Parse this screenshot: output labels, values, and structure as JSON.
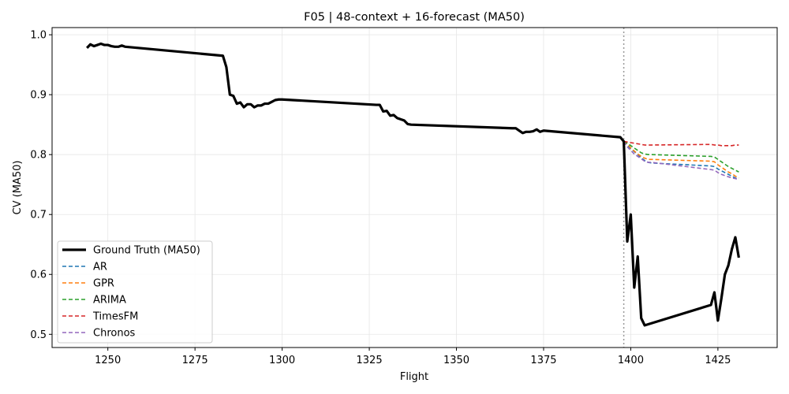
{
  "chart_data": {
    "type": "line",
    "title": "F05 | 48-context + 16-forecast (MA50)",
    "xlabel": "Flight",
    "ylabel": "CV (MA50)",
    "xlim": [
      1234,
      1442
    ],
    "ylim": [
      0.478,
      1.012
    ],
    "xticks": [
      1250,
      1275,
      1300,
      1325,
      1350,
      1375,
      1400,
      1425
    ],
    "yticks": [
      0.5,
      0.6,
      0.7,
      0.8,
      0.9,
      1.0
    ],
    "grid": true,
    "legend_position": "lower-left",
    "forecast_start_marker": 1398,
    "series": [
      {
        "name": "Ground Truth (MA50)",
        "color": "#000000",
        "style": "solid",
        "x": [
          1244,
          1245,
          1246,
          1247,
          1248,
          1249,
          1250,
          1251,
          1252,
          1253,
          1254,
          1255,
          1283,
          1284,
          1285,
          1286,
          1287,
          1288,
          1289,
          1290,
          1291,
          1292,
          1293,
          1294,
          1295,
          1296,
          1297,
          1298,
          1299,
          1300,
          1327,
          1328,
          1329,
          1330,
          1331,
          1332,
          1333,
          1334,
          1335,
          1336,
          1337,
          1366,
          1367,
          1368,
          1369,
          1370,
          1371,
          1372,
          1373,
          1374,
          1375,
          1397,
          1398,
          1399,
          1400,
          1401,
          1402,
          1403,
          1404,
          1423,
          1424,
          1425,
          1426,
          1427,
          1428,
          1429,
          1430,
          1431
        ],
        "values": [
          0.978,
          0.984,
          0.981,
          0.983,
          0.985,
          0.983,
          0.983,
          0.981,
          0.98,
          0.98,
          0.982,
          0.98,
          0.965,
          0.946,
          0.9,
          0.898,
          0.885,
          0.887,
          0.879,
          0.884,
          0.884,
          0.879,
          0.882,
          0.882,
          0.885,
          0.885,
          0.888,
          0.891,
          0.892,
          0.892,
          0.883,
          0.883,
          0.872,
          0.873,
          0.865,
          0.866,
          0.861,
          0.859,
          0.857,
          0.851,
          0.85,
          0.844,
          0.844,
          0.84,
          0.836,
          0.838,
          0.838,
          0.839,
          0.842,
          0.838,
          0.84,
          0.829,
          0.822,
          0.655,
          0.7,
          0.578,
          0.63,
          0.527,
          0.515,
          0.549,
          0.57,
          0.523,
          0.56,
          0.6,
          0.615,
          0.642,
          0.662,
          0.628
        ]
      },
      {
        "name": "AR",
        "color": "#1f77b4",
        "style": "dashed",
        "x": [
          1398,
          1399,
          1400,
          1401,
          1402,
          1403,
          1404,
          1405,
          1406,
          1423,
          1424,
          1425,
          1426,
          1427,
          1428,
          1429,
          1430,
          1431
        ],
        "values": [
          0.822,
          0.816,
          0.81,
          0.805,
          0.8,
          0.795,
          0.79,
          0.787,
          0.786,
          0.781,
          0.78,
          0.776,
          0.773,
          0.77,
          0.767,
          0.764,
          0.761,
          0.759
        ]
      },
      {
        "name": "GPR",
        "color": "#ff7f0e",
        "style": "dashed",
        "x": [
          1398,
          1399,
          1400,
          1401,
          1402,
          1403,
          1404,
          1405,
          1406,
          1423,
          1424,
          1425,
          1426,
          1427,
          1428,
          1429,
          1430,
          1431
        ],
        "values": [
          0.822,
          0.818,
          0.811,
          0.806,
          0.801,
          0.797,
          0.794,
          0.792,
          0.792,
          0.789,
          0.788,
          0.783,
          0.779,
          0.775,
          0.771,
          0.768,
          0.764,
          0.761
        ]
      },
      {
        "name": "ARIMA",
        "color": "#2ca02c",
        "style": "dashed",
        "x": [
          1398,
          1399,
          1400,
          1401,
          1402,
          1403,
          1404,
          1405,
          1406,
          1423,
          1424,
          1425,
          1426,
          1427,
          1428,
          1429,
          1430,
          1431
        ],
        "values": [
          0.822,
          0.819,
          0.815,
          0.811,
          0.807,
          0.803,
          0.801,
          0.8,
          0.8,
          0.797,
          0.796,
          0.792,
          0.788,
          0.784,
          0.78,
          0.777,
          0.774,
          0.771
        ]
      },
      {
        "name": "TimesFM",
        "color": "#d62728",
        "style": "dashed",
        "x": [
          1398,
          1399,
          1400,
          1401,
          1402,
          1403,
          1404,
          1405,
          1406,
          1423,
          1424,
          1425,
          1426,
          1427,
          1428,
          1429,
          1430,
          1431
        ],
        "values": [
          0.822,
          0.821,
          0.82,
          0.819,
          0.818,
          0.817,
          0.816,
          0.816,
          0.816,
          0.817,
          0.816,
          0.816,
          0.815,
          0.815,
          0.815,
          0.815,
          0.816,
          0.816
        ]
      },
      {
        "name": "Chronos",
        "color": "#9467bd",
        "style": "dashed",
        "x": [
          1398,
          1399,
          1400,
          1401,
          1402,
          1403,
          1404,
          1405,
          1406,
          1423,
          1424,
          1425,
          1426,
          1427,
          1428,
          1429,
          1430,
          1431
        ],
        "values": [
          0.822,
          0.813,
          0.807,
          0.801,
          0.797,
          0.793,
          0.789,
          0.787,
          0.787,
          0.775,
          0.774,
          0.77,
          0.767,
          0.765,
          0.763,
          0.761,
          0.76,
          0.758
        ]
      }
    ]
  }
}
